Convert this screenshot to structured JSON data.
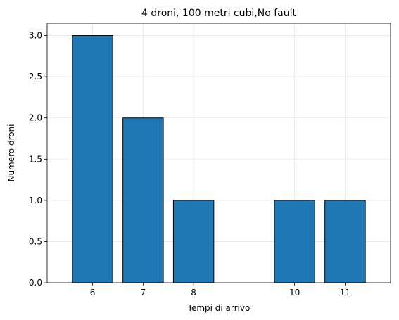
{
  "chart_data": {
    "type": "bar",
    "title": "4 droni, 100 metri cubi,No fault",
    "xlabel": "Tempi di arrivo",
    "ylabel": "Numero droni",
    "x": [
      6,
      7,
      8,
      10,
      11
    ],
    "values": [
      3,
      2,
      1,
      1,
      1
    ],
    "xticks": [
      "6",
      "7",
      "8",
      "10",
      "11"
    ],
    "yticks": [
      "0.0",
      "0.5",
      "1.0",
      "1.5",
      "2.0",
      "2.5",
      "3.0"
    ],
    "xlim": [
      5.1,
      11.9
    ],
    "ylim": [
      0,
      3.15
    ],
    "grid": true,
    "bar_color": "#1f77b4",
    "bar_edge_color": "#000000"
  }
}
